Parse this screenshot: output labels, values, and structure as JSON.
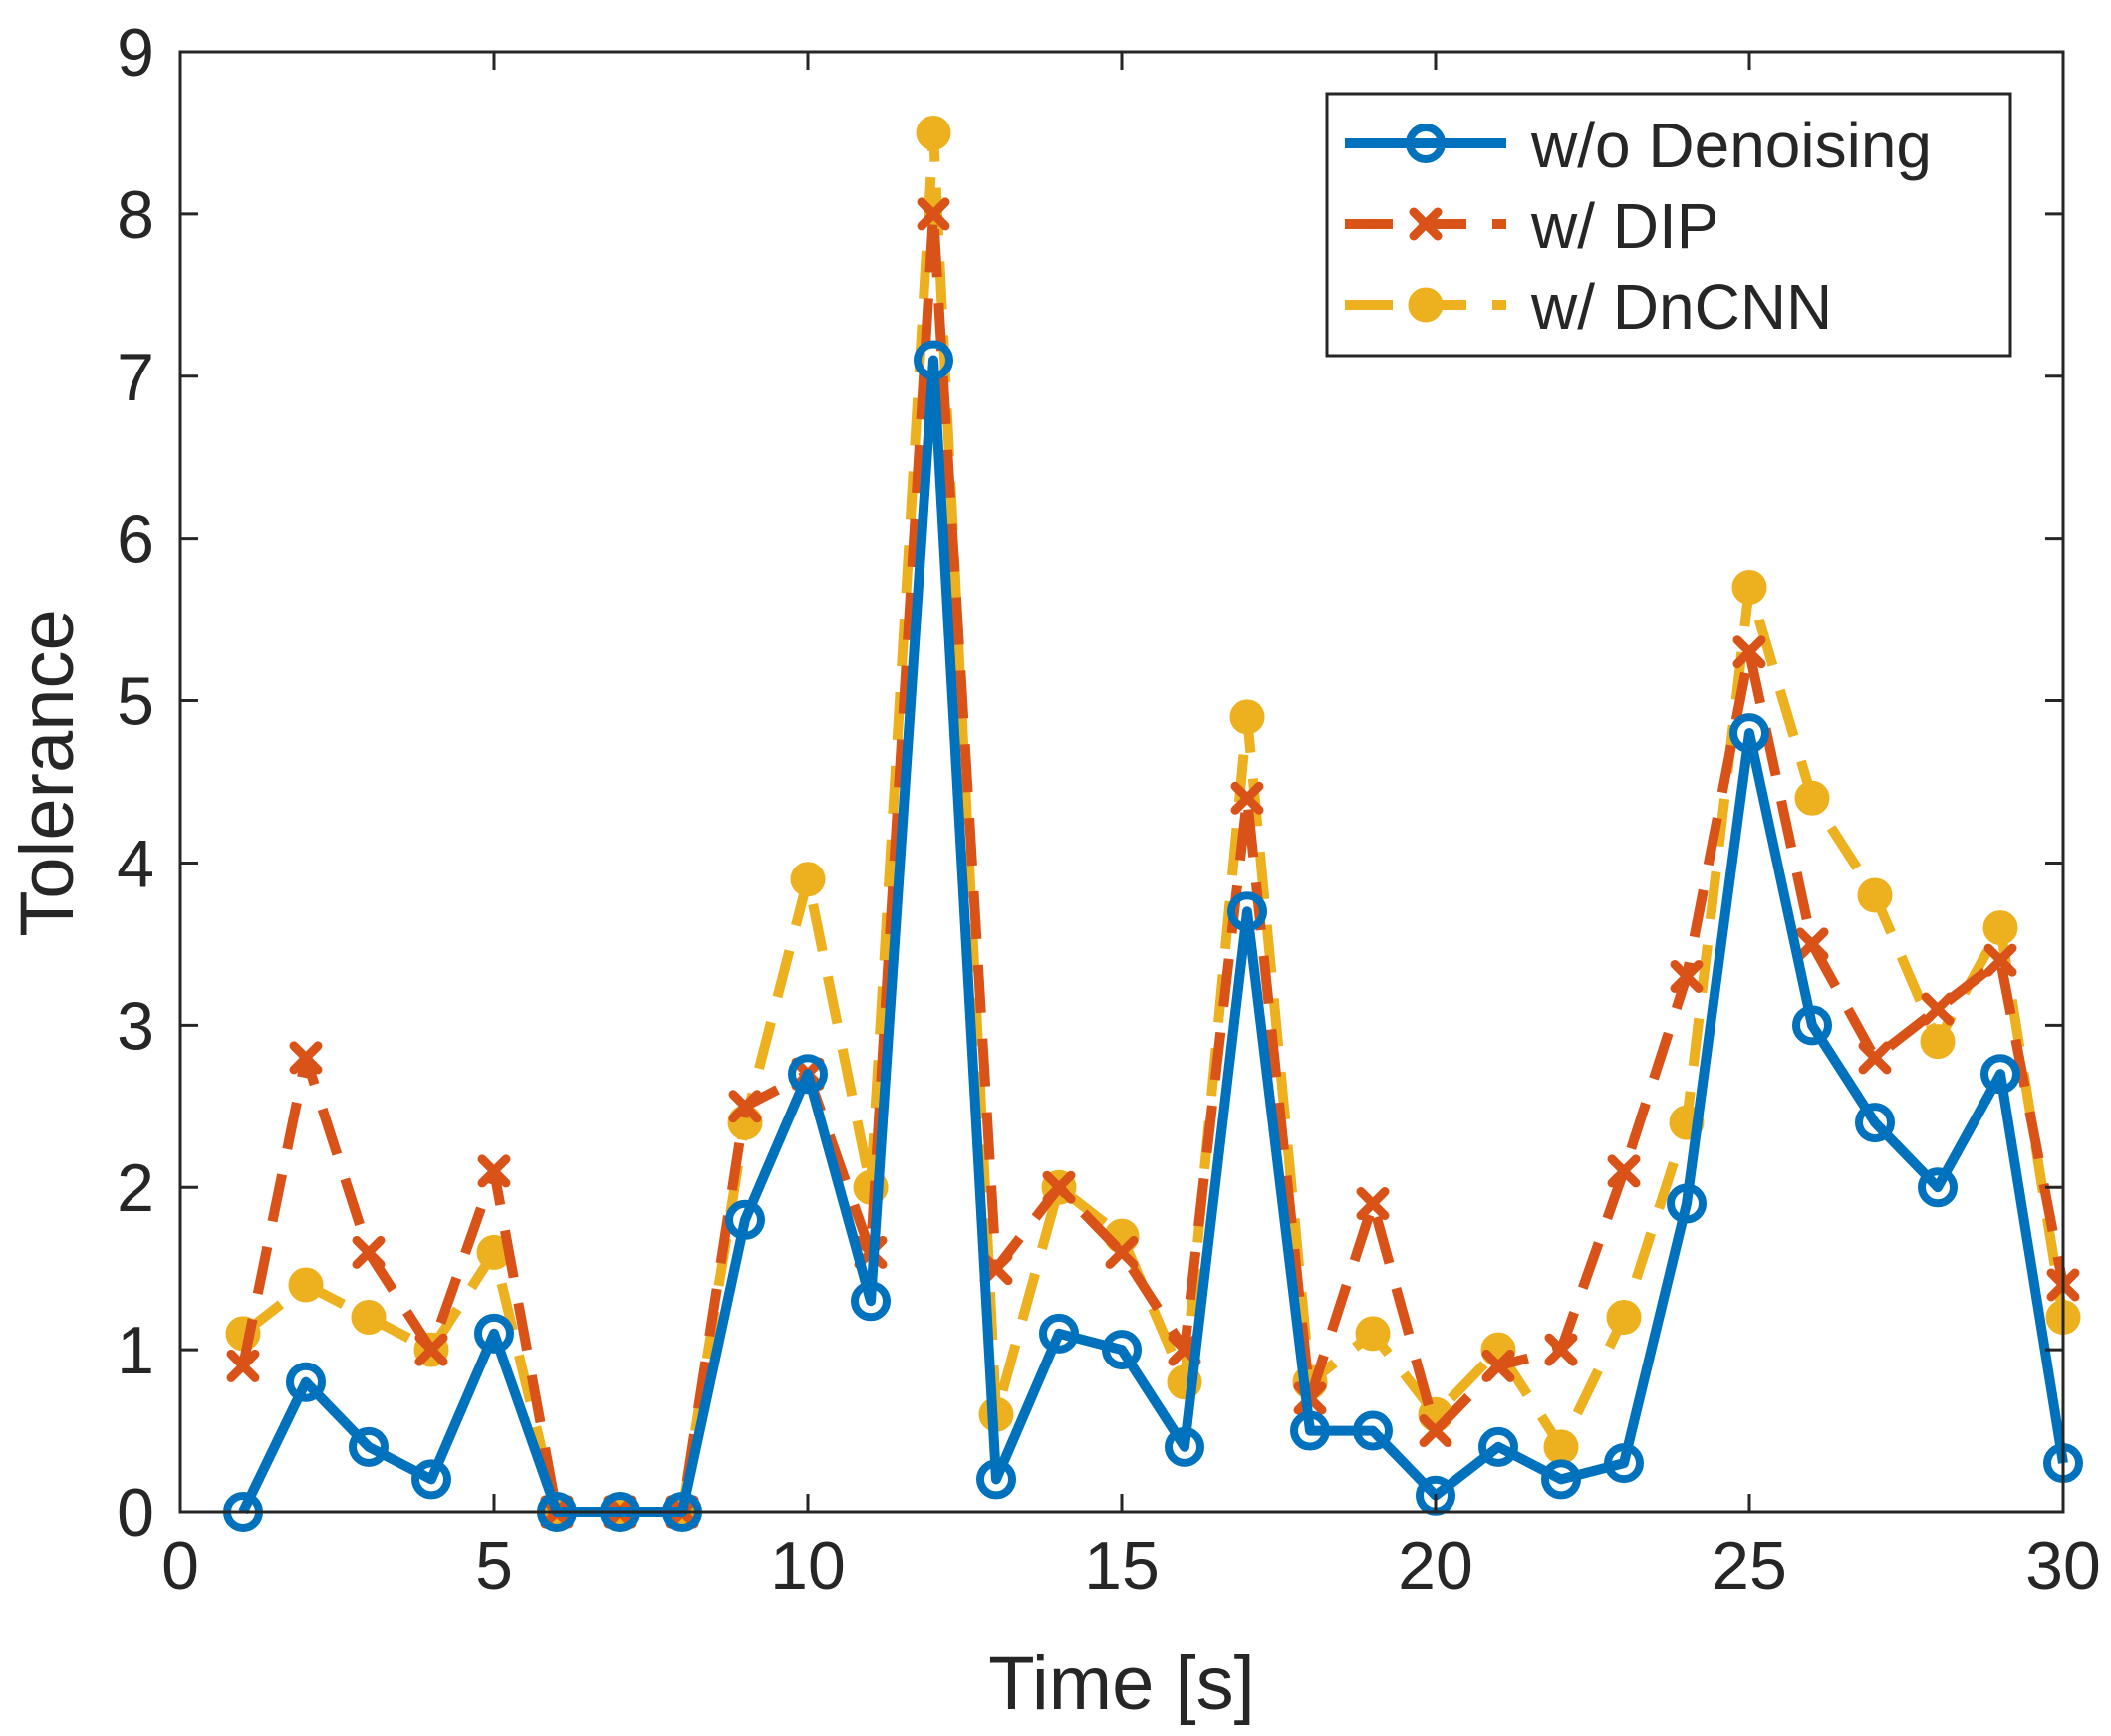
{
  "chart_data": {
    "type": "line",
    "title": "",
    "xlabel": "Time [s]",
    "ylabel": "Tolerance",
    "xlim": [
      0,
      30
    ],
    "ylim": [
      0,
      9
    ],
    "xticks": [
      0,
      5,
      10,
      15,
      20,
      25,
      30
    ],
    "yticks": [
      0,
      1,
      2,
      3,
      4,
      5,
      6,
      7,
      8,
      9
    ],
    "grid": false,
    "legend_position": "top-right",
    "x": [
      1,
      2,
      3,
      4,
      5,
      6,
      7,
      8,
      9,
      10,
      11,
      12,
      13,
      14,
      15,
      16,
      17,
      18,
      19,
      20,
      21,
      22,
      23,
      24,
      25,
      26,
      27,
      28,
      29,
      30
    ],
    "series": [
      {
        "name": "w/o Denoising",
        "color": "#0072BD",
        "line": "solid",
        "marker": "circle-open",
        "values": [
          0,
          0.8,
          0.4,
          0.2,
          1.1,
          0,
          0,
          0,
          1.8,
          2.7,
          1.3,
          7.1,
          0.2,
          1.1,
          1.0,
          0.4,
          3.7,
          0.5,
          0.5,
          0.1,
          0.4,
          0.2,
          0.3,
          1.9,
          4.8,
          3.0,
          2.4,
          2.0,
          2.7,
          0.3
        ]
      },
      {
        "name": "w/ DIP",
        "color": "#D95319",
        "line": "dashed",
        "marker": "x",
        "values": [
          0.9,
          2.8,
          1.6,
          1.0,
          2.1,
          0,
          0,
          0,
          2.5,
          2.7,
          1.6,
          8.0,
          1.5,
          2.0,
          1.6,
          1.0,
          4.4,
          0.7,
          1.9,
          0.5,
          0.9,
          1.0,
          2.1,
          3.3,
          5.3,
          3.5,
          2.8,
          3.1,
          3.4,
          1.4
        ]
      },
      {
        "name": "w/ DnCNN",
        "color": "#EDB120",
        "line": "dashed",
        "marker": "circle-filled",
        "values": [
          1.1,
          1.4,
          1.2,
          1.0,
          1.6,
          0,
          0,
          0,
          2.4,
          3.9,
          2.0,
          8.5,
          0.6,
          2.0,
          1.7,
          0.8,
          4.9,
          0.8,
          1.1,
          0.6,
          1.0,
          0.4,
          1.2,
          2.4,
          5.7,
          4.4,
          3.8,
          2.9,
          3.6,
          1.2
        ]
      }
    ]
  }
}
